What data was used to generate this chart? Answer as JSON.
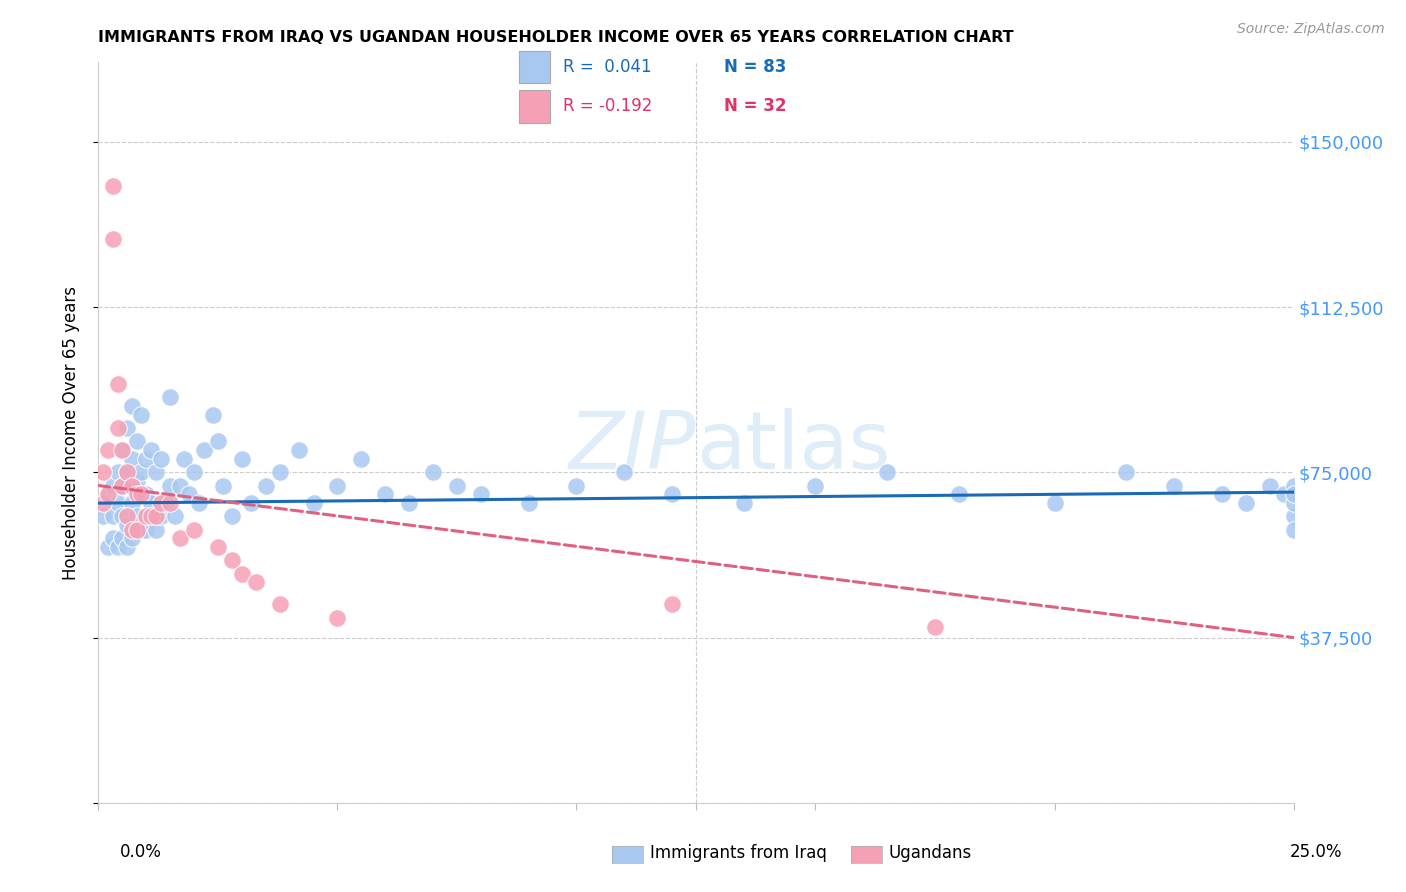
{
  "title": "IMMIGRANTS FROM IRAQ VS UGANDAN HOUSEHOLDER INCOME OVER 65 YEARS CORRELATION CHART",
  "source": "Source: ZipAtlas.com",
  "ylabel": "Householder Income Over 65 years",
  "yticks": [
    0,
    37500,
    75000,
    112500,
    150000
  ],
  "ytick_labels": [
    "",
    "$37,500",
    "$75,000",
    "$112,500",
    "$150,000"
  ],
  "xlim": [
    0.0,
    0.25
  ],
  "ylim": [
    0,
    168000
  ],
  "legend_iraq_r": "R =  0.041",
  "legend_iraq_n": "N = 83",
  "legend_uganda_r": "R = -0.192",
  "legend_uganda_n": "N = 32",
  "iraq_color": "#a8c8f0",
  "uganda_color": "#f5a0b5",
  "iraq_line_color": "#1a6bb5",
  "uganda_line_color": "#e06080",
  "iraq_points_x": [
    0.001,
    0.002,
    0.002,
    0.003,
    0.003,
    0.003,
    0.004,
    0.004,
    0.004,
    0.005,
    0.005,
    0.005,
    0.005,
    0.006,
    0.006,
    0.006,
    0.006,
    0.007,
    0.007,
    0.007,
    0.007,
    0.008,
    0.008,
    0.008,
    0.009,
    0.009,
    0.009,
    0.01,
    0.01,
    0.01,
    0.011,
    0.011,
    0.012,
    0.012,
    0.013,
    0.013,
    0.014,
    0.015,
    0.015,
    0.016,
    0.017,
    0.018,
    0.019,
    0.02,
    0.021,
    0.022,
    0.024,
    0.025,
    0.026,
    0.028,
    0.03,
    0.032,
    0.035,
    0.038,
    0.042,
    0.045,
    0.05,
    0.055,
    0.06,
    0.065,
    0.07,
    0.075,
    0.08,
    0.09,
    0.1,
    0.11,
    0.12,
    0.135,
    0.15,
    0.165,
    0.18,
    0.2,
    0.215,
    0.225,
    0.235,
    0.24,
    0.245,
    0.248,
    0.25,
    0.25,
    0.25,
    0.25,
    0.25
  ],
  "iraq_points_y": [
    65000,
    70000,
    58000,
    72000,
    65000,
    60000,
    75000,
    68000,
    58000,
    80000,
    72000,
    65000,
    60000,
    85000,
    75000,
    63000,
    58000,
    90000,
    78000,
    68000,
    60000,
    82000,
    73000,
    65000,
    88000,
    75000,
    62000,
    78000,
    70000,
    62000,
    80000,
    68000,
    75000,
    62000,
    78000,
    65000,
    68000,
    92000,
    72000,
    65000,
    72000,
    78000,
    70000,
    75000,
    68000,
    80000,
    88000,
    82000,
    72000,
    65000,
    78000,
    68000,
    72000,
    75000,
    80000,
    68000,
    72000,
    78000,
    70000,
    68000,
    75000,
    72000,
    70000,
    68000,
    72000,
    75000,
    70000,
    68000,
    72000,
    75000,
    70000,
    68000,
    75000,
    72000,
    70000,
    68000,
    72000,
    70000,
    65000,
    68000,
    72000,
    70000,
    62000
  ],
  "uganda_points_x": [
    0.001,
    0.001,
    0.002,
    0.002,
    0.003,
    0.003,
    0.004,
    0.004,
    0.005,
    0.005,
    0.006,
    0.006,
    0.007,
    0.007,
    0.008,
    0.008,
    0.009,
    0.01,
    0.011,
    0.012,
    0.013,
    0.015,
    0.017,
    0.02,
    0.025,
    0.028,
    0.03,
    0.033,
    0.038,
    0.05,
    0.12,
    0.175
  ],
  "uganda_points_y": [
    75000,
    68000,
    80000,
    70000,
    140000,
    128000,
    95000,
    85000,
    80000,
    72000,
    75000,
    65000,
    72000,
    62000,
    70000,
    62000,
    70000,
    65000,
    65000,
    65000,
    68000,
    68000,
    60000,
    62000,
    58000,
    55000,
    52000,
    50000,
    45000,
    42000,
    45000,
    40000
  ]
}
